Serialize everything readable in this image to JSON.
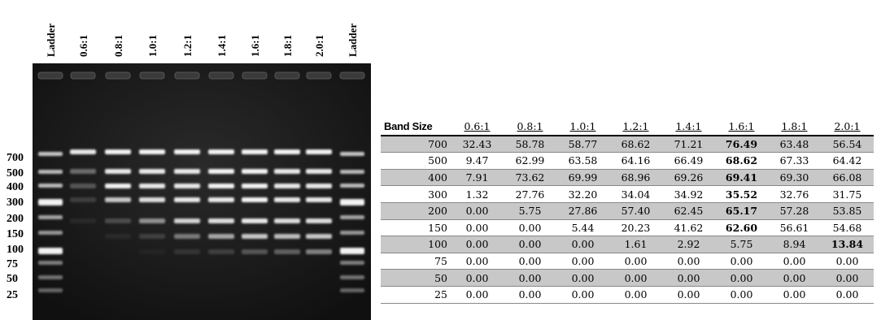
{
  "gel": {
    "lane_labels": [
      "Ladder",
      "0.6:1",
      "0.8:1",
      "1.0:1",
      "1.2:1",
      "1.4:1",
      "1.6:1",
      "1.8:1",
      "2.0:1",
      "Ladder"
    ],
    "size_labels": [
      "700",
      "500",
      "400",
      "300",
      "200",
      "150",
      "100",
      "75",
      "50",
      "25"
    ]
  },
  "table": {
    "header": [
      "Band Size",
      "0.6:1",
      "0.8:1",
      "1.0:1",
      "1.2:1",
      "1.4:1",
      "1.6:1",
      "1.8:1",
      "2.0:1"
    ],
    "rows": [
      [
        "700",
        "32.43",
        "58.78",
        "58.77",
        "68.62",
        "71.21",
        "76.49",
        "63.48",
        "56.54"
      ],
      [
        "500",
        "9.47",
        "62.99",
        "63.58",
        "64.16",
        "66.49",
        "68.62",
        "67.33",
        "64.42"
      ],
      [
        "400",
        "7.91",
        "73.62",
        "69.99",
        "68.96",
        "69.26",
        "69.41",
        "69.30",
        "66.08"
      ],
      [
        "300",
        "1.32",
        "27.76",
        "32.20",
        "34.04",
        "34.92",
        "35.52",
        "32.76",
        "31.75"
      ],
      [
        "200",
        "0.00",
        "5.75",
        "27.86",
        "57.40",
        "62.45",
        "65.17",
        "57.28",
        "53.85"
      ],
      [
        "150",
        "0.00",
        "0.00",
        "5.44",
        "20.23",
        "41.62",
        "62.60",
        "56.61",
        "54.68"
      ],
      [
        "100",
        "0.00",
        "0.00",
        "0.00",
        "1.61",
        "2.92",
        "5.75",
        "8.94",
        "13.84"
      ],
      [
        "75",
        "0.00",
        "0.00",
        "0.00",
        "0.00",
        "0.00",
        "0.00",
        "0.00",
        "0.00"
      ],
      [
        "50",
        "0.00",
        "0.00",
        "0.00",
        "0.00",
        "0.00",
        "0.00",
        "0.00",
        "0.00"
      ],
      [
        "25",
        "0.00",
        "0.00",
        "0.00",
        "0.00",
        "0.00",
        "0.00",
        "0.00",
        "0.00"
      ]
    ]
  }
}
